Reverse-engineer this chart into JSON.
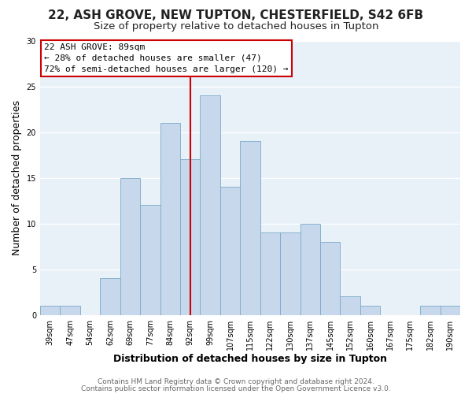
{
  "title": "22, ASH GROVE, NEW TUPTON, CHESTERFIELD, S42 6FB",
  "subtitle": "Size of property relative to detached houses in Tupton",
  "xlabel": "Distribution of detached houses by size in Tupton",
  "ylabel": "Number of detached properties",
  "bar_color": "#c8d8ec",
  "bar_edge_color": "#7aaac8",
  "categories": [
    "39sqm",
    "47sqm",
    "54sqm",
    "62sqm",
    "69sqm",
    "77sqm",
    "84sqm",
    "92sqm",
    "99sqm",
    "107sqm",
    "115sqm",
    "122sqm",
    "130sqm",
    "137sqm",
    "145sqm",
    "152sqm",
    "160sqm",
    "167sqm",
    "175sqm",
    "182sqm",
    "190sqm"
  ],
  "values": [
    1,
    1,
    0,
    4,
    15,
    12,
    21,
    17,
    24,
    14,
    19,
    9,
    9,
    10,
    8,
    2,
    1,
    0,
    0,
    1,
    1
  ],
  "ylim": [
    0,
    30
  ],
  "yticks": [
    0,
    5,
    10,
    15,
    20,
    25,
    30
  ],
  "vline_x_index": 7,
  "vline_color": "#cc0000",
  "annotation_title": "22 ASH GROVE: 89sqm",
  "annotation_line1": "← 28% of detached houses are smaller (47)",
  "annotation_line2": "72% of semi-detached houses are larger (120) →",
  "annotation_box_color": "#ffffff",
  "annotation_box_edge": "#cc0000",
  "footer1": "Contains HM Land Registry data © Crown copyright and database right 2024.",
  "footer2": "Contains public sector information licensed under the Open Government Licence v3.0.",
  "background_color": "#ffffff",
  "plot_bg_color": "#e8f0f8",
  "grid_color": "#ffffff",
  "title_fontsize": 11,
  "subtitle_fontsize": 9.5,
  "axis_label_fontsize": 9,
  "tick_fontsize": 7,
  "annotation_fontsize": 8,
  "footer_fontsize": 6.5
}
